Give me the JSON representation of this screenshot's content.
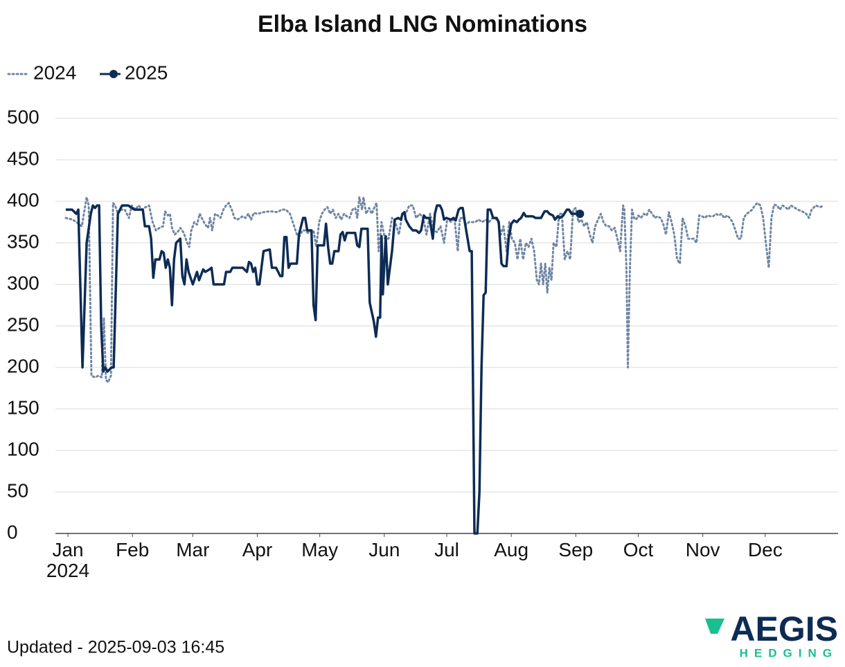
{
  "chart_data": {
    "type": "line",
    "title": "Elba Island LNG Nominations",
    "xlim": [
      -6,
      370
    ],
    "xticks": [
      {
        "value": 0,
        "label": "Jan\n2024"
      },
      {
        "value": 31,
        "label": "Feb"
      },
      {
        "value": 60,
        "label": "Mar"
      },
      {
        "value": 91,
        "label": "Apr"
      },
      {
        "value": 121,
        "label": "May"
      },
      {
        "value": 152,
        "label": "Jun"
      },
      {
        "value": 182,
        "label": "Jul"
      },
      {
        "value": 213,
        "label": "Aug"
      },
      {
        "value": 244,
        "label": "Sep"
      },
      {
        "value": 274,
        "label": "Oct"
      },
      {
        "value": 305,
        "label": "Nov"
      },
      {
        "value": 335,
        "label": "Dec"
      }
    ],
    "ylim": [
      0,
      500
    ],
    "yticks": [
      0,
      50,
      100,
      150,
      200,
      250,
      300,
      350,
      400,
      450,
      500
    ],
    "grid": true,
    "legend": "top-left",
    "series": [
      {
        "name": "2024",
        "color": "#6f86a4",
        "dash": "dotted",
        "x": [
          -1,
          2.3,
          4,
          6.7,
          8,
          9,
          10,
          11.3,
          13,
          14.7,
          16.3,
          17.3,
          18.3,
          19.3,
          20.7,
          21.7,
          22.7,
          24,
          25.7,
          27.3,
          29.3,
          30.7,
          32.3,
          34,
          35.7,
          37.3,
          39,
          40.7,
          42.3,
          44,
          45.7,
          46.7,
          48,
          49,
          50,
          51.3,
          52.7,
          54,
          55.7,
          57.3,
          58.3,
          59.3,
          60.7,
          62,
          63.3,
          64.7,
          66,
          67.3,
          68.3,
          69.3,
          70.7,
          72,
          73.3,
          74.7,
          76,
          77.3,
          78.7,
          80,
          81.3,
          82.7,
          84,
          85.3,
          86.7,
          88,
          89.3,
          91.3,
          94,
          97.3,
          100.7,
          102.7,
          104.7,
          106.7,
          108.7,
          110,
          111.3,
          112.7,
          114,
          115.3,
          116.7,
          118,
          119.3,
          120.7,
          122,
          123.3,
          124.7,
          126,
          127.3,
          128.7,
          130,
          131.3,
          132.7,
          134,
          135.3,
          136.7,
          138,
          139,
          140,
          141.3,
          142,
          143.3,
          144.7,
          146,
          147.3,
          148.3,
          149.3,
          150.7,
          152.3,
          154,
          155.7,
          157.3,
          159,
          160.7,
          162.3,
          164,
          165.7,
          167.3,
          169,
          170.7,
          172.3,
          174,
          175.7,
          177.3,
          179,
          180.7,
          182.3,
          184,
          185.7,
          187.3,
          188.3,
          190,
          191.3,
          192.7,
          194,
          195.7,
          197.3,
          199,
          200.7,
          202.3,
          204,
          205.3,
          206.7,
          208,
          209.3,
          210.7,
          212,
          213.3,
          214.7,
          216,
          217.3,
          218.7,
          220,
          221.3,
          222.7,
          224,
          225.3,
          226.3,
          227.3,
          228.3,
          229.3,
          230.3,
          231.3,
          232.3,
          233.3,
          234.7,
          236,
          237.3,
          238.7,
          240,
          241.3,
          242.7,
          244,
          245.3,
          246.7,
          248,
          249.3,
          250.7,
          252,
          253.3,
          254.7,
          256,
          257.3,
          258.7,
          260,
          261.3,
          262.7,
          264,
          265.3,
          266.7,
          267.3,
          268.3,
          269,
          270,
          271,
          272,
          273,
          274,
          275.3,
          276.7,
          278,
          279.3,
          280.7,
          282,
          283.3,
          284.7,
          286,
          287.3,
          288.7,
          290,
          291.3,
          292.7,
          294,
          295.3,
          296.7,
          298,
          299.3,
          300.7,
          302,
          303.3,
          304.7,
          306,
          307.3,
          308.7,
          310,
          311.3,
          312.7,
          314,
          315.3,
          316.7,
          318,
          319.3,
          320.7,
          322,
          323.3,
          324.7,
          326,
          327.3,
          328.7,
          330,
          331.3,
          332.7,
          334,
          335.3,
          336.7,
          338,
          339.3,
          340.7,
          342,
          343.3,
          344.7,
          346,
          347.3,
          348.7,
          350.7,
          352.7,
          354.7,
          356,
          357.3,
          359.3,
          361.3,
          363.3
        ],
        "values": [
          380,
          378,
          375,
          370,
          390,
          405,
          395,
          190,
          188,
          190,
          188,
          260,
          185,
          182,
          190,
          398,
          395,
          385,
          390,
          390,
          380,
          395,
          390,
          395,
          390,
          393,
          395,
          375,
          365,
          368,
          370,
          388,
          383,
          385,
          368,
          360,
          363,
          368,
          362,
          350,
          345,
          365,
          375,
          372,
          385,
          378,
          372,
          368,
          380,
          365,
          385,
          383,
          380,
          390,
          395,
          398,
          390,
          380,
          378,
          380,
          382,
          380,
          385,
          378,
          386,
          385,
          387,
          388,
          387,
          390,
          390,
          385,
          370,
          360,
          358,
          365,
          365,
          362,
          363,
          365,
          345,
          375,
          385,
          390,
          393,
          385,
          390,
          380,
          385,
          378,
          385,
          382,
          380,
          390,
          392,
          380,
          405,
          390,
          405,
          385,
          392,
          385,
          393,
          398,
          340,
          375,
          355,
          355,
          380,
          375,
          360,
          385,
          385,
          395,
          395,
          380,
          385,
          380,
          360,
          385,
          365,
          363,
          370,
          350,
          380,
          375,
          380,
          340,
          380,
          380,
          372,
          375,
          375,
          375,
          378,
          375,
          378,
          375,
          380,
          380,
          375,
          360,
          370,
          340,
          375,
          355,
          350,
          330,
          355,
          330,
          350,
          345,
          355,
          340,
          305,
          300,
          325,
          300,
          325,
          290,
          320,
          305,
          350,
          345,
          385,
          385,
          330,
          340,
          330,
          390,
          392,
          375,
          378,
          370,
          375,
          360,
          350,
          370,
          378,
          385,
          375,
          370,
          370,
          365,
          368,
          355,
          340,
          395,
          390,
          320,
          200,
          320,
          390,
          380,
          378,
          383,
          380,
          385,
          383,
          390,
          385,
          380,
          382,
          380,
          373,
          360,
          387,
          375,
          360,
          330,
          325,
          380,
          370,
          355,
          355,
          355,
          350,
          383,
          382,
          380,
          383,
          382,
          382,
          385,
          383,
          385,
          380,
          383,
          380,
          375,
          365,
          355,
          355,
          380,
          385,
          387,
          390,
          395,
          398,
          395,
          380,
          350,
          320,
          380,
          396,
          395,
          390,
          395,
          393,
          390,
          395,
          393,
          390,
          388,
          385,
          380,
          390,
          395,
          393,
          395
        ]
      },
      {
        "name": "2025",
        "color": "#0d2c54",
        "dash": "solid",
        "marker": "last",
        "x": [
          -1,
          2,
          4,
          5,
          7,
          9,
          11,
          12,
          13,
          14,
          15,
          16,
          17,
          18,
          19,
          21,
          22,
          24,
          26,
          29,
          32,
          36,
          37,
          39,
          40,
          41,
          42,
          44,
          45,
          46,
          47,
          48,
          49,
          50,
          51,
          52,
          54,
          55,
          56,
          57,
          58,
          60,
          62,
          63,
          65,
          66,
          68,
          69,
          70,
          74,
          75,
          76,
          78,
          79,
          84,
          86,
          87,
          88,
          89,
          90,
          91,
          92,
          94,
          97,
          98,
          100,
          102,
          103,
          104,
          105,
          106,
          107,
          110,
          111,
          113,
          114,
          115,
          117,
          118,
          119,
          120,
          123,
          124,
          125,
          126,
          127,
          128,
          130,
          131,
          132,
          133,
          134,
          138,
          139,
          140,
          141,
          144,
          145,
          147,
          148,
          149,
          150,
          150.7,
          151.3,
          152.7,
          153.7,
          155.7,
          157,
          158.7,
          160,
          160.7,
          161.7,
          162.3,
          164,
          165.7,
          167.3,
          168.7,
          169.7,
          171,
          172,
          173.7,
          175.3,
          176.3,
          177.3,
          178.7,
          179.7,
          180.7,
          181.7,
          184,
          185.3,
          186.3,
          187.7,
          188.7,
          189.7,
          190.7,
          192,
          193,
          194,
          195.3,
          196.7,
          197.7,
          198.7,
          199.7,
          200.7,
          201.7,
          203,
          204.3,
          206,
          207,
          208.3,
          209.3,
          210.7,
          211.7,
          213,
          214.3,
          215.7,
          216.7,
          217.7,
          219,
          220,
          223.3,
          224.7,
          227.3,
          229,
          230.3,
          231.3,
          233,
          234,
          235.3,
          236.3,
          238,
          239.7,
          240.7,
          242,
          246
        ],
        "values": [
          390,
          390,
          385,
          390,
          200,
          350,
          385,
          395,
          392,
          395,
          395,
          250,
          195,
          200,
          195,
          200,
          200,
          385,
          395,
          395,
          390,
          390,
          370,
          370,
          355,
          308,
          330,
          330,
          340,
          338,
          320,
          330,
          320,
          275,
          330,
          350,
          355,
          310,
          300,
          330,
          315,
          300,
          315,
          305,
          318,
          315,
          318,
          320,
          300,
          300,
          300,
          315,
          315,
          320,
          320,
          315,
          327,
          325,
          315,
          320,
          300,
          300,
          340,
          342,
          320,
          320,
          310,
          310,
          357,
          357,
          320,
          325,
          325,
          360,
          380,
          380,
          365,
          365,
          275,
          257,
          347,
          347,
          373,
          345,
          325,
          325,
          340,
          340,
          360,
          363,
          353,
          362,
          362,
          347,
          345,
          367,
          367,
          278,
          255,
          237,
          260,
          260,
          358,
          288,
          358,
          300,
          340,
          378,
          380,
          378,
          385,
          387,
          378,
          370,
          365,
          365,
          362,
          365,
          383,
          380,
          380,
          355,
          385,
          395,
          395,
          390,
          378,
          380,
          378,
          380,
          377,
          390,
          392,
          392,
          375,
          355,
          340,
          340,
          0,
          0,
          50,
          200,
          287,
          290,
          390,
          390,
          380,
          380,
          375,
          325,
          322,
          322,
          355,
          373,
          377,
          375,
          378,
          380,
          386,
          382,
          382,
          380,
          380,
          388,
          388,
          385,
          383,
          378,
          382,
          380,
          383,
          390,
          390,
          385,
          385
        ]
      }
    ]
  },
  "footer": "Updated - 2025-09-03 16:45",
  "logo": {
    "name": "AEGIS",
    "tagline": "HEDGING"
  }
}
